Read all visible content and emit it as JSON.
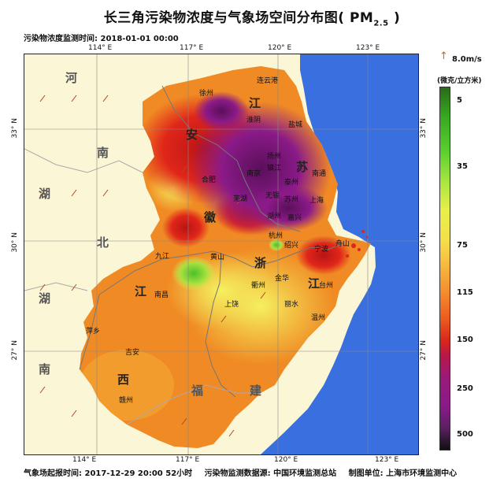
{
  "title_prefix": "长三角污染物浓度与气象场空间分布图(",
  "title_pm": "PM",
  "title_sub": "2.5",
  "title_suffix": " )",
  "datetime_label": "污染物浓度监测时间: 2018-01-01 00:00",
  "lon_ticks_top": [
    "114° E",
    "117° E",
    "120° E",
    "123° E"
  ],
  "lon_ticks_bottom": [
    "114° E",
    "117° E",
    "120° E",
    "123° E"
  ],
  "lat_ticks": [
    "33° N",
    "30° N",
    "27° N"
  ],
  "provinces": [
    "河",
    "南",
    "湖",
    "北",
    "湖",
    "南",
    "安",
    "徽",
    "江",
    "苏",
    "浙",
    "江",
    "江",
    "西",
    "福",
    "建"
  ],
  "cities": [
    "连云港",
    "徐州",
    "淮阴",
    "盐城",
    "扬州",
    "镇江",
    "南京",
    "泰州",
    "南通",
    "合肥",
    "芜湖",
    "无锡",
    "苏州",
    "上海",
    "湖州",
    "嘉兴",
    "杭州",
    "绍兴",
    "宁波",
    "舟山",
    "九江",
    "黄山",
    "衢州",
    "金华",
    "台州",
    "南昌",
    "上饶",
    "丽水",
    "温州",
    "萍乡",
    "吉安",
    "赣州"
  ],
  "legend": {
    "wind_label": "8.0m/s",
    "unit_label": "(微克/立方米)",
    "ticks": [
      "5",
      "35",
      "75",
      "115",
      "150",
      "250",
      "500"
    ]
  },
  "footer": {
    "weather_time": "气象场起报时间: 2017-12-29 20:00 52小时",
    "data_source": "污染物监测数据源: 中国环境监测总站",
    "producer": "制图单位: 上海市环境监测中心"
  },
  "colors": {
    "sea": "#3a6fe0",
    "land_outside": "#fbf6d6",
    "orange": "#f08a24",
    "yellow": "#f2e85a",
    "red": "#e0261a",
    "purple": "#8a1a88",
    "green": "#7ed23a"
  }
}
